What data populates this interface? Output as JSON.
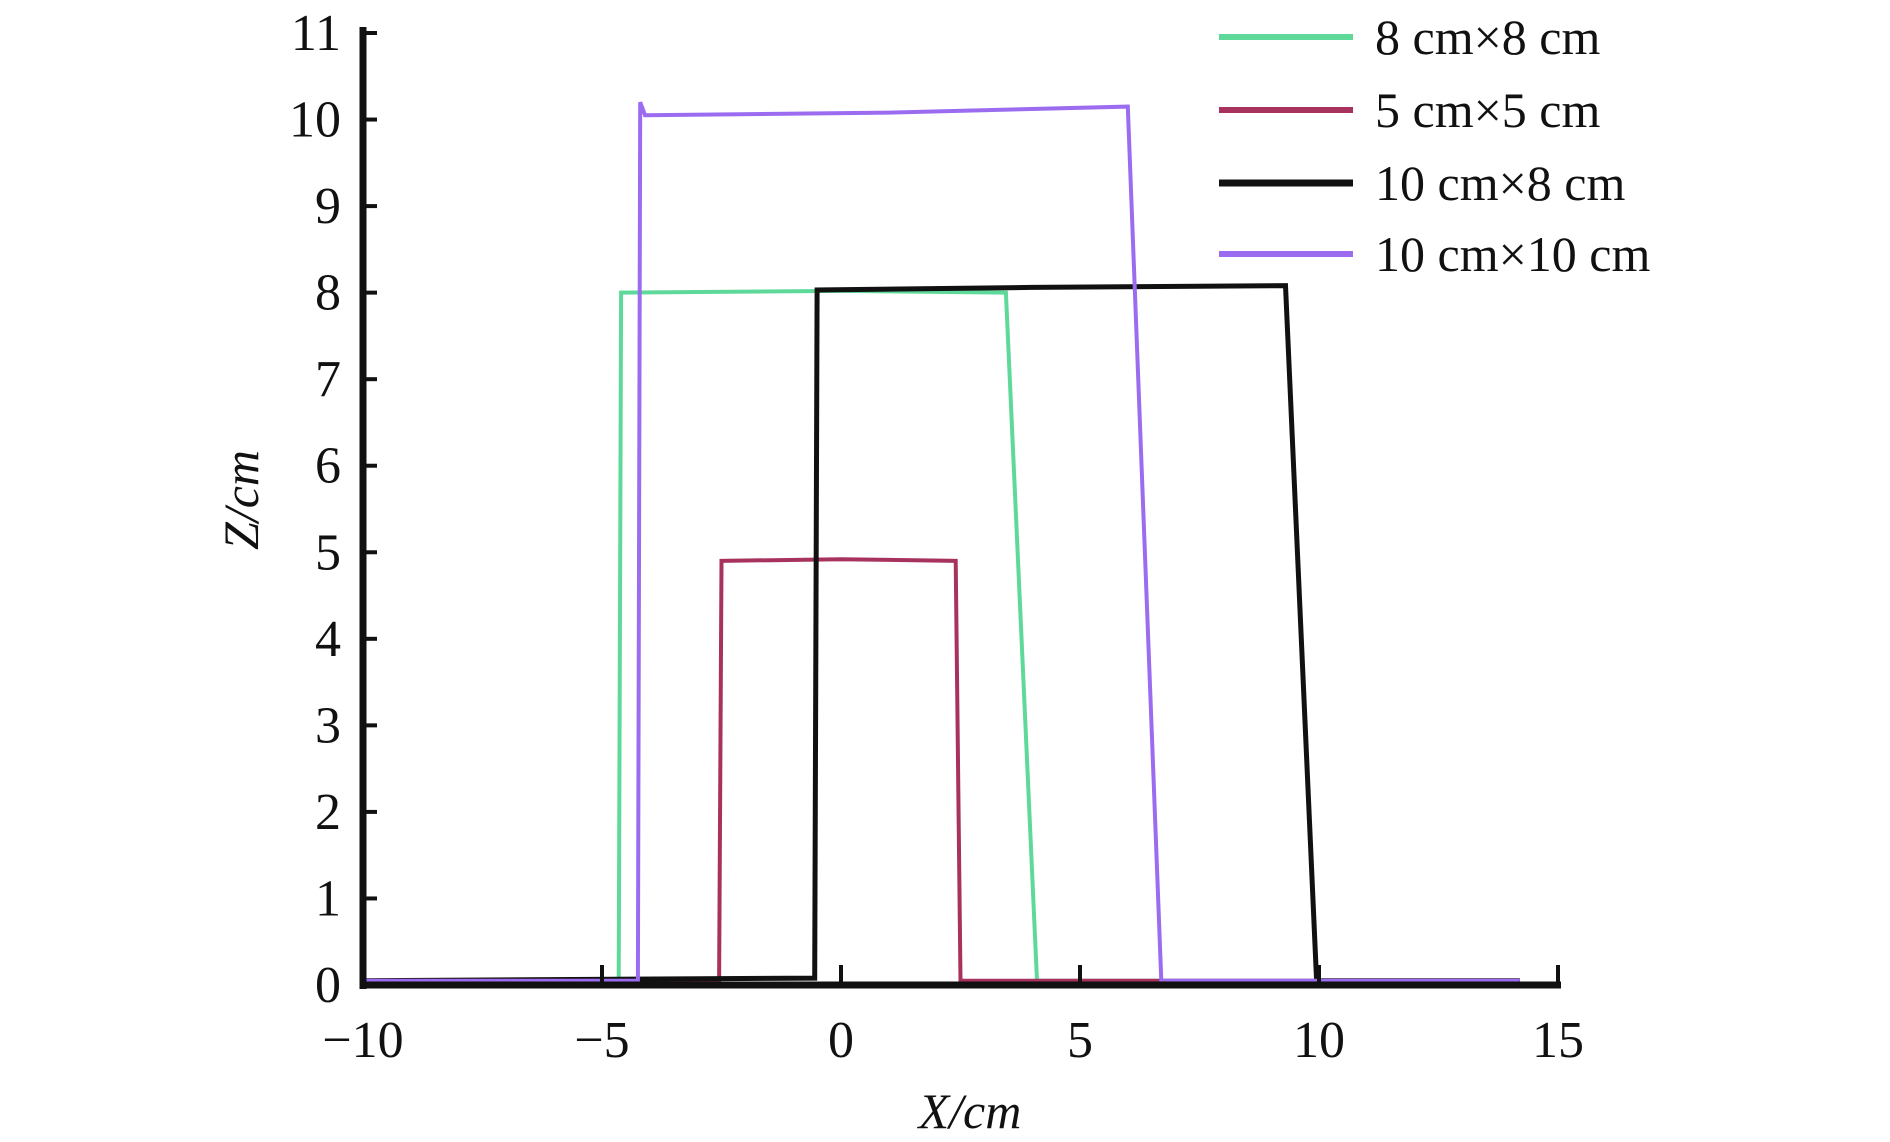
{
  "chart_data": {
    "type": "line",
    "title": "",
    "xlabel": "X/cm",
    "ylabel": "Z/cm",
    "xlim": [
      -10,
      15
    ],
    "ylim": [
      0,
      11
    ],
    "xticks": [
      "−10",
      "−5",
      "0",
      "5",
      "10",
      "15"
    ],
    "xtick_values": [
      -10,
      -5,
      0,
      5,
      10,
      15
    ],
    "yticks": [
      "0",
      "1",
      "2",
      "3",
      "4",
      "5",
      "6",
      "7",
      "8",
      "9",
      "10",
      "11"
    ],
    "ytick_values": [
      0,
      1,
      2,
      3,
      4,
      5,
      6,
      7,
      8,
      9,
      10,
      11
    ],
    "grid": false,
    "legend_position": "top-right",
    "series": [
      {
        "name": "8 cm×8 cm",
        "color": "#5fd99a",
        "x": [
          -10,
          -4.65,
          -4.6,
          0,
          3.45,
          4.1,
          14.2
        ],
        "y": [
          0.05,
          0.05,
          8.0,
          8.02,
          8.0,
          0.05,
          0.05
        ]
      },
      {
        "name": "5 cm×5 cm",
        "color": "#a8325e",
        "x": [
          -10,
          -2.55,
          -2.5,
          0,
          2.4,
          2.5,
          14.2
        ],
        "y": [
          0.05,
          0.05,
          4.9,
          4.92,
          4.9,
          0.05,
          0.05
        ]
      },
      {
        "name": "10 cm×8 cm",
        "color": "#111111",
        "x": [
          -10,
          -0.55,
          -0.5,
          4,
          9.3,
          9.95,
          14.2
        ],
        "y": [
          0.05,
          0.08,
          8.03,
          8.06,
          8.08,
          0.05,
          0.05
        ]
      },
      {
        "name": "10 cm×10 cm",
        "color": "#9b6cf0",
        "x": [
          -10,
          -4.25,
          -4.2,
          -4.1,
          1,
          6.0,
          6.7,
          14.2
        ],
        "y": [
          0.05,
          0.05,
          10.2,
          10.05,
          10.08,
          10.15,
          0.05,
          0.05
        ]
      }
    ]
  }
}
